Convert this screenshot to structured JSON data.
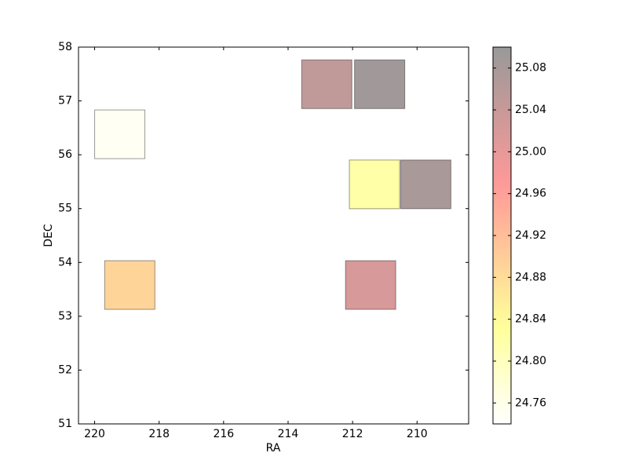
{
  "chart_data": {
    "type": "scatter",
    "marker": "square",
    "x_label": "RA",
    "y_label": "DEC",
    "x": [
      219.22,
      218.91,
      212.8,
      211.16,
      211.32,
      209.73,
      211.44
    ],
    "y": [
      56.38,
      53.58,
      57.31,
      57.31,
      55.45,
      55.45,
      53.58
    ],
    "values": [
      24.75,
      24.89,
      25.05,
      25.09,
      24.82,
      25.08,
      25.02
    ],
    "colormap": "hot_r",
    "alpha": 0.4,
    "xlim": [
      220.5,
      208.4
    ],
    "xticks": [
      220,
      218,
      216,
      214,
      212,
      210
    ],
    "ylim": [
      51,
      58
    ],
    "yticks": [
      51,
      52,
      53,
      54,
      55,
      56,
      57,
      58
    ],
    "clim": [
      24.74,
      25.1
    ],
    "cticks": [
      24.76,
      {
        "value": 24.8,
        "label": "24.80"
      },
      24.84,
      24.88,
      24.92,
      24.96,
      {
        "value": 25.0,
        "label": "25.00"
      },
      25.04,
      25.08
    ]
  }
}
